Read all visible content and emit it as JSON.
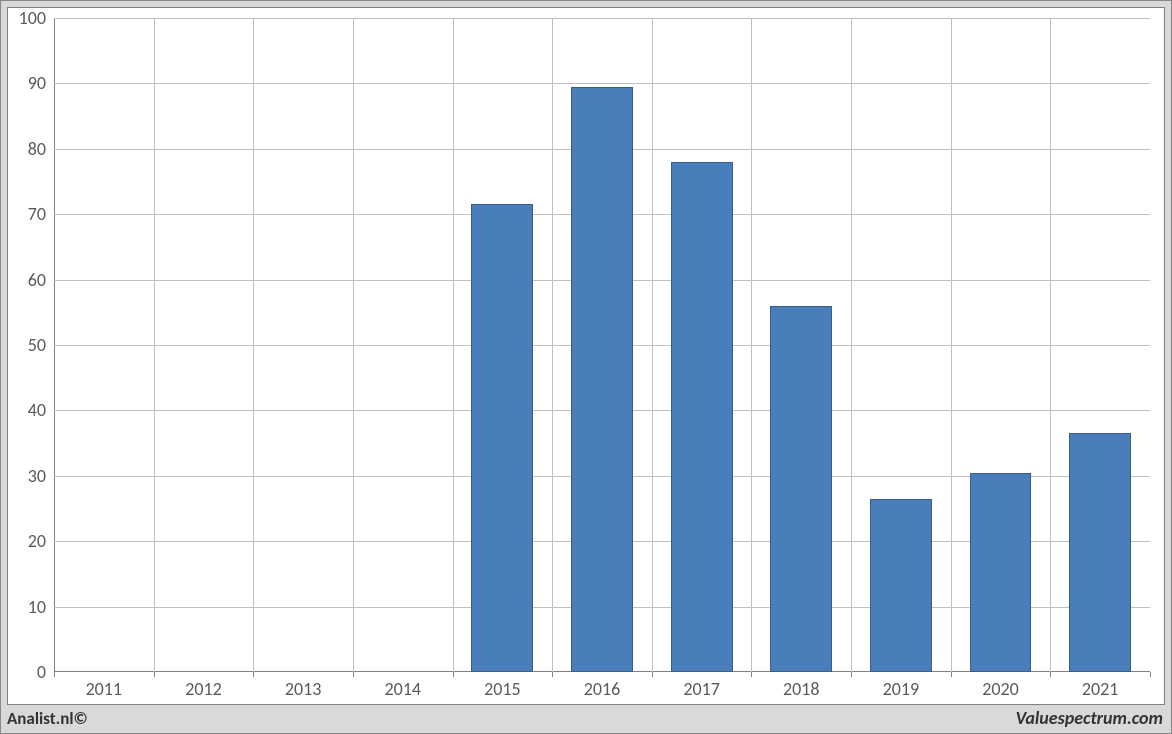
{
  "chart": {
    "type": "bar",
    "categories": [
      "2011",
      "2012",
      "2013",
      "2014",
      "2015",
      "2016",
      "2017",
      "2018",
      "2019",
      "2020",
      "2021"
    ],
    "values": [
      0,
      0,
      0,
      0,
      71.5,
      89.5,
      78,
      56,
      26.5,
      30.5,
      36.5
    ],
    "bar_color": "#4a7ebb",
    "bar_border_color": "#37608f",
    "background_color": "#ffffff",
    "outer_background_color": "#d9d9d9",
    "grid_color": "#bfbfbf",
    "axis_color": "#808080",
    "ylim": [
      0,
      100
    ],
    "ytick_step": 10,
    "yticks": [
      "0",
      "10",
      "20",
      "30",
      "40",
      "50",
      "60",
      "70",
      "80",
      "90",
      "100"
    ],
    "label_fontsize": 18,
    "label_color": "#595959",
    "bar_width_ratio": 0.62
  },
  "footer": {
    "left": "Analist.nl©",
    "right": "Valuespectrum.com"
  }
}
